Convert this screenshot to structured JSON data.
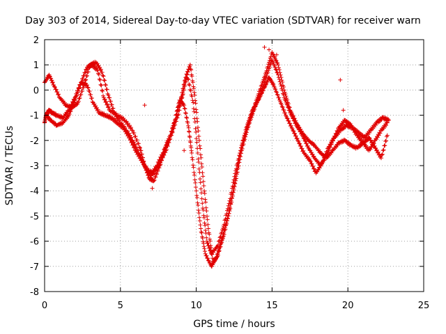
{
  "chart_data": {
    "type": "scatter",
    "title": "Day 303 of 2014, Sidereal Day-to-day VTEC variation (SDTVAR) for receiver warn",
    "xlabel": "GPS time / hours",
    "ylabel": "SDTVAR / TECUs",
    "xlim": [
      0,
      25
    ],
    "ylim": [
      -8,
      2
    ],
    "xticks": [
      "0",
      "5",
      "10",
      "15",
      "20",
      "25"
    ],
    "yticks": [
      "-8",
      "-7",
      "-6",
      "-5",
      "-4",
      "-3",
      "-2",
      "-1",
      "0",
      "1",
      "2"
    ],
    "grid": true,
    "marker": "+",
    "color": "#e00000",
    "series": [
      {
        "x": [
          0.0,
          0.1,
          0.2,
          0.3,
          0.5,
          0.8,
          1.2,
          1.6,
          2.0,
          2.4,
          2.8,
          3.1,
          3.5,
          3.9,
          4.3,
          4.8,
          5.3,
          5.8,
          6.3,
          6.6,
          6.9,
          7.2,
          7.6,
          8.0,
          8.3,
          8.6,
          8.9,
          9.2,
          9.5,
          9.7,
          10.0,
          10.3,
          10.6,
          11.0,
          11.3,
          11.7,
          12.1,
          12.5,
          12.9,
          13.3,
          13.7,
          14.1,
          14.5,
          14.8,
          15.1,
          15.5,
          15.9,
          16.3,
          16.7,
          17.1,
          17.5,
          17.9,
          18.3,
          18.7,
          19.1,
          19.5,
          19.9,
          20.3,
          20.7,
          21.1,
          21.5,
          21.9,
          22.3,
          22.7
        ],
        "y": [
          -1.3,
          -1.0,
          -0.9,
          -0.8,
          -0.9,
          -1.0,
          -1.1,
          -0.8,
          -0.3,
          0.3,
          0.9,
          1.0,
          0.8,
          -0.3,
          -0.8,
          -1.0,
          -1.2,
          -1.6,
          -2.3,
          -3.0,
          -3.5,
          -3.6,
          -3.0,
          -2.2,
          -1.8,
          -1.2,
          -0.4,
          -0.6,
          -1.5,
          -2.5,
          -4.0,
          -5.5,
          -6.5,
          -7.0,
          -6.7,
          -5.9,
          -5.0,
          -3.8,
          -2.5,
          -1.5,
          -0.8,
          -0.4,
          0.1,
          0.5,
          0.2,
          -0.4,
          -1.0,
          -1.5,
          -2.0,
          -2.5,
          -2.8,
          -3.3,
          -2.9,
          -2.3,
          -1.9,
          -1.6,
          -1.4,
          -1.5,
          -1.7,
          -1.9,
          -1.6,
          -1.3,
          -1.1,
          -1.2
        ]
      },
      {
        "x": [
          0.0,
          0.3,
          0.6,
          1.0,
          1.4,
          1.8,
          2.2,
          2.6,
          3.0,
          3.4,
          3.8,
          4.2,
          4.6,
          5.0,
          5.4,
          5.8,
          6.2,
          6.6,
          7.0,
          7.4,
          7.8,
          8.2,
          8.6,
          9.0,
          9.3,
          9.6,
          9.9,
          10.2,
          10.5,
          10.8,
          11.1,
          11.4,
          11.8,
          12.2,
          12.6,
          13.0,
          13.4,
          13.8,
          14.2,
          14.6,
          15.0,
          15.4,
          15.8,
          16.2,
          16.6,
          17.0,
          17.4,
          17.8,
          18.2,
          18.6,
          19.0,
          19.4,
          19.8,
          20.2,
          20.6,
          21.0,
          21.4,
          21.8,
          22.2,
          22.6
        ],
        "y": [
          0.3,
          0.6,
          0.2,
          -0.3,
          -0.6,
          -0.7,
          -0.5,
          0.2,
          1.0,
          1.1,
          0.7,
          -0.2,
          -0.9,
          -1.3,
          -1.6,
          -2.0,
          -2.5,
          -3.0,
          -3.4,
          -3.0,
          -2.5,
          -2.0,
          -1.2,
          -0.3,
          0.5,
          1.0,
          -0.2,
          -2.0,
          -3.8,
          -5.5,
          -6.8,
          -6.6,
          -5.8,
          -4.8,
          -3.6,
          -2.4,
          -1.5,
          -0.8,
          -0.2,
          0.5,
          1.2,
          0.6,
          -0.3,
          -0.9,
          -1.4,
          -1.8,
          -2.3,
          -2.7,
          -3.0,
          -2.6,
          -2.0,
          -1.5,
          -1.2,
          -1.4,
          -1.8,
          -2.1,
          -2.4,
          -2.0,
          -1.6,
          -1.3
        ]
      },
      {
        "x": [
          0.1,
          0.4,
          0.8,
          1.2,
          1.6,
          2.0,
          2.4,
          2.8,
          3.2,
          3.6,
          4.0,
          4.4,
          4.8,
          5.2,
          5.6,
          6.0,
          6.4,
          6.8,
          7.2,
          7.6,
          8.0,
          8.4,
          8.8,
          9.1,
          9.4,
          9.8,
          10.1,
          10.4,
          10.7,
          11.0,
          11.4,
          11.8,
          12.2,
          12.6,
          13.0,
          13.4,
          13.8,
          14.2,
          14.6,
          15.0,
          15.4,
          15.8,
          16.2,
          16.6,
          17.0,
          17.4,
          17.8,
          18.2,
          18.6,
          19.0,
          19.4,
          19.8,
          20.2,
          20.6,
          21.0,
          21.4,
          21.8,
          22.2,
          22.6
        ],
        "y": [
          -1.0,
          -1.2,
          -1.4,
          -1.3,
          -1.0,
          -0.4,
          0.3,
          0.2,
          -0.5,
          -0.9,
          -1.0,
          -1.1,
          -1.3,
          -1.5,
          -1.9,
          -2.4,
          -2.8,
          -3.2,
          -3.3,
          -2.9,
          -2.4,
          -1.7,
          -1.0,
          -0.2,
          0.6,
          -0.5,
          -2.5,
          -4.5,
          -6.0,
          -6.5,
          -6.2,
          -5.4,
          -4.4,
          -3.2,
          -2.2,
          -1.4,
          -0.7,
          0.0,
          0.7,
          1.5,
          1.0,
          0.0,
          -0.8,
          -1.3,
          -1.7,
          -2.0,
          -2.2,
          -2.5,
          -2.7,
          -2.4,
          -2.1,
          -2.0,
          -2.2,
          -2.3,
          -2.1,
          -1.9,
          -2.3,
          -2.7,
          -1.8
        ]
      }
    ],
    "outliers": {
      "x": [
        6.6,
        7.1,
        9.2,
        9.6,
        14.5,
        14.8,
        15.3,
        19.5,
        19.7
      ],
      "y": [
        -0.6,
        -3.9,
        -2.4,
        1.0,
        1.7,
        1.6,
        1.4,
        0.4,
        -0.8
      ]
    }
  }
}
